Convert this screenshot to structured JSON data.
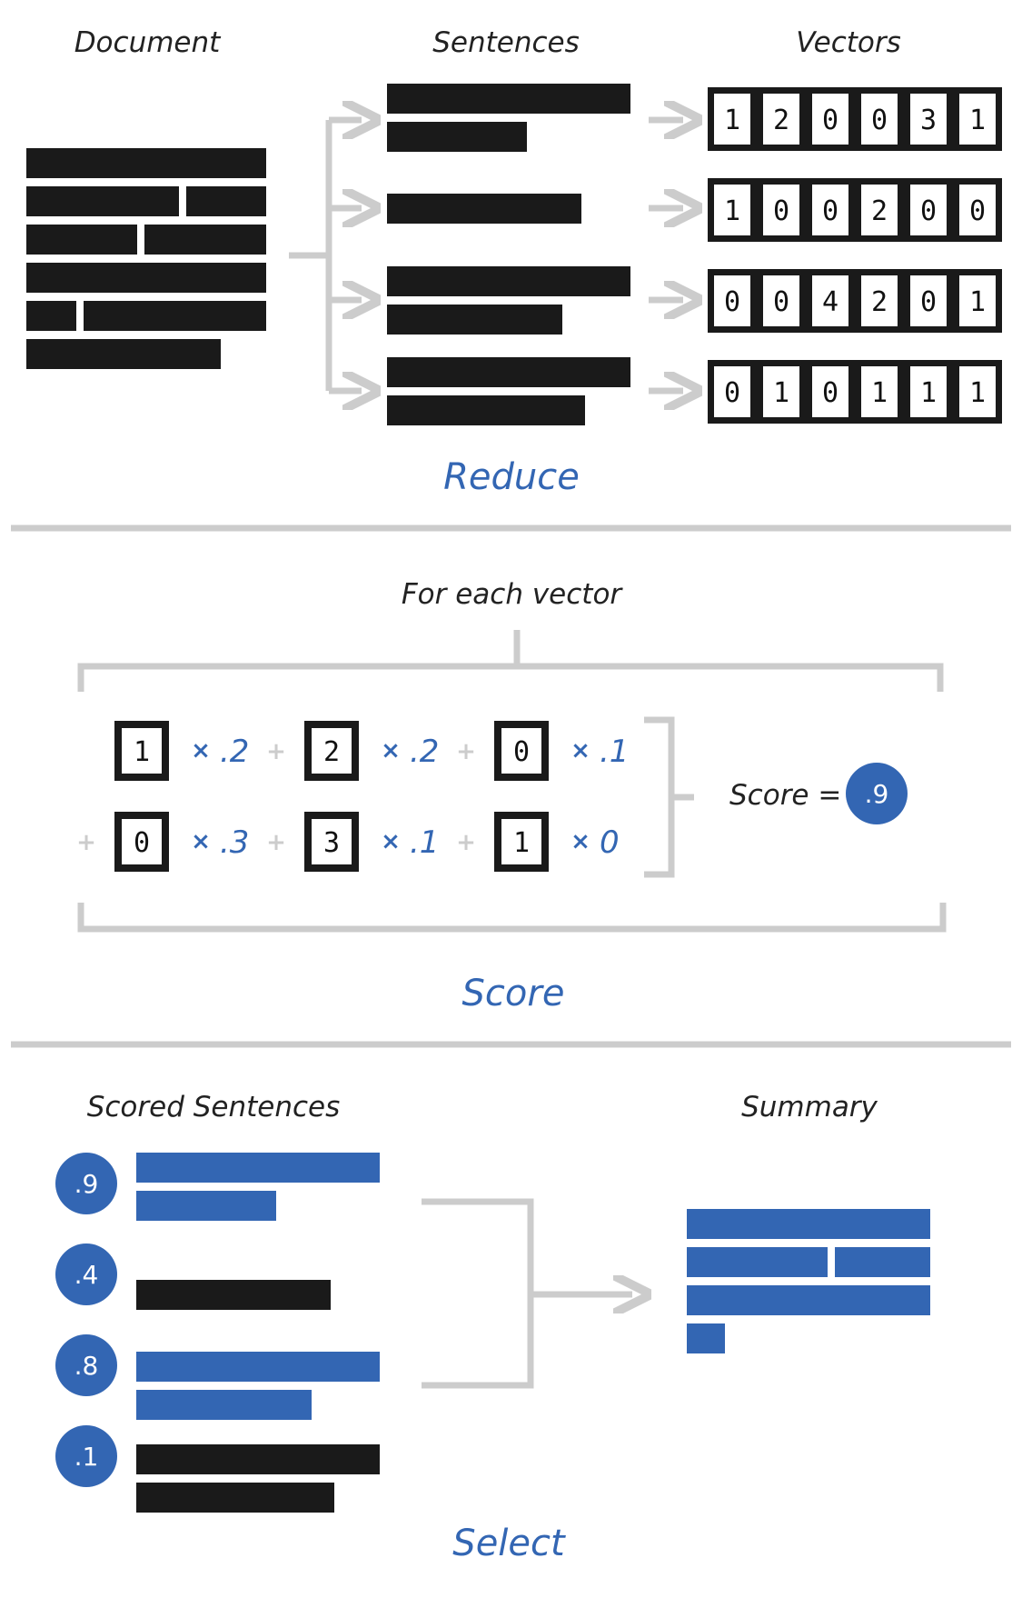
{
  "colors": {
    "ink": "#1a1a1a",
    "accent": "#3366b3",
    "gray": "#cccccc",
    "white": "#ffffff"
  },
  "reduce": {
    "document_label": "Document",
    "sentences_label": "Sentences",
    "vectors_label": "Vectors",
    "vectors": [
      [
        "1",
        "2",
        "0",
        "0",
        "3",
        "1"
      ],
      [
        "1",
        "0",
        "0",
        "2",
        "0",
        "0"
      ],
      [
        "0",
        "0",
        "4",
        "2",
        "0",
        "1"
      ],
      [
        "0",
        "1",
        "0",
        "1",
        "1",
        "1"
      ]
    ],
    "title": "Reduce"
  },
  "score": {
    "caption": "For each vector",
    "terms": [
      {
        "prefix": "",
        "value": "1",
        "weight": ".2"
      },
      {
        "prefix": "+",
        "value": "2",
        "weight": ".2"
      },
      {
        "prefix": "+",
        "value": "0",
        "weight": ".1"
      },
      {
        "prefix": "+",
        "value": "0",
        "weight": ".3"
      },
      {
        "prefix": "+",
        "value": "3",
        "weight": ".1"
      },
      {
        "prefix": "+",
        "value": "1",
        "weight": "0"
      }
    ],
    "multiply_symbol": "×",
    "result_label": "Score =",
    "result_value": ".9",
    "title": "Score"
  },
  "select": {
    "scored_label": "Scored Sentences",
    "summary_label": "Summary",
    "scores": [
      {
        "value": ".9",
        "selected": true
      },
      {
        "value": ".4",
        "selected": false
      },
      {
        "value": ".8",
        "selected": true
      },
      {
        "value": ".1",
        "selected": false
      }
    ],
    "title": "Select"
  }
}
